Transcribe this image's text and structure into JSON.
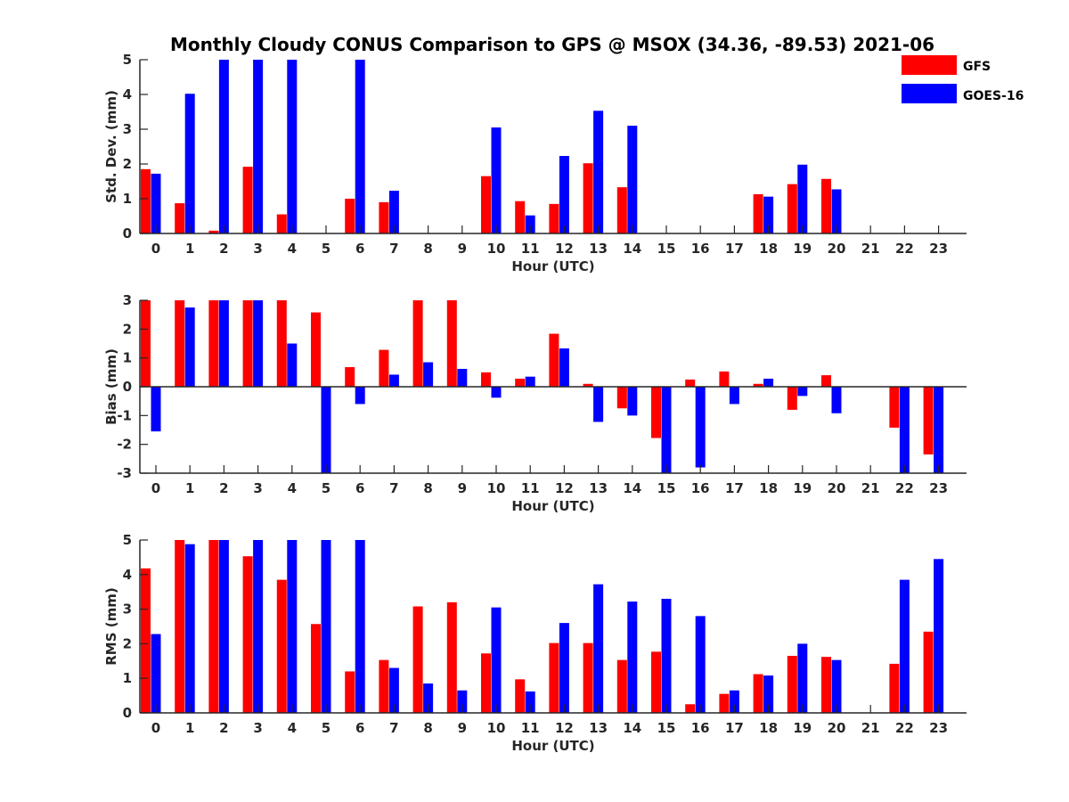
{
  "title": "Monthly Cloudy CONUS Comparison to GPS @ MSOX (34.36, -89.53) 2021-06",
  "legend": [
    {
      "name": "GFS",
      "color": "#ff0000"
    },
    {
      "name": "GOES-16",
      "color": "#0000ff"
    }
  ],
  "chart_data": [
    {
      "type": "bar",
      "xlabel": "Hour (UTC)",
      "ylabel": "Std. Dev. (mm)",
      "categories": [
        "0",
        "1",
        "2",
        "3",
        "4",
        "5",
        "6",
        "7",
        "8",
        "9",
        "10",
        "11",
        "12",
        "13",
        "14",
        "15",
        "16",
        "17",
        "18",
        "19",
        "20",
        "21",
        "22",
        "23"
      ],
      "ylim": [
        0,
        5
      ],
      "yticks": [
        0,
        1,
        2,
        3,
        4,
        5
      ],
      "series": [
        {
          "name": "GFS",
          "color": "#ff0000",
          "values": [
            1.85,
            0.87,
            0.08,
            1.92,
            0.55,
            0,
            1.0,
            0.9,
            0,
            0,
            1.65,
            0.93,
            0.85,
            2.02,
            1.33,
            0,
            0,
            0,
            1.13,
            1.42,
            1.57,
            0,
            0,
            0
          ]
        },
        {
          "name": "GOES-16",
          "color": "#0000ff",
          "values": [
            1.72,
            4.02,
            5.0,
            5.0,
            5.0,
            0,
            5.0,
            1.23,
            0,
            0,
            3.05,
            0.52,
            2.23,
            3.53,
            3.1,
            0,
            0,
            0,
            1.06,
            1.98,
            1.27,
            0,
            0,
            0
          ]
        }
      ]
    },
    {
      "type": "bar",
      "xlabel": "Hour (UTC)",
      "ylabel": "Bias (mm)",
      "categories": [
        "0",
        "1",
        "2",
        "3",
        "4",
        "5",
        "6",
        "7",
        "8",
        "9",
        "10",
        "11",
        "12",
        "13",
        "14",
        "15",
        "16",
        "17",
        "18",
        "19",
        "20",
        "21",
        "22",
        "23"
      ],
      "ylim": [
        -3,
        3
      ],
      "yticks": [
        -3,
        -2,
        -1,
        0,
        1,
        2,
        3
      ],
      "series": [
        {
          "name": "GFS",
          "color": "#ff0000",
          "values": [
            3.0,
            3.0,
            3.0,
            3.0,
            3.0,
            2.58,
            0.68,
            1.28,
            3.0,
            3.0,
            0.5,
            0.28,
            1.84,
            0.1,
            -0.75,
            -1.78,
            0.25,
            0.53,
            0.1,
            -0.8,
            0.4,
            0,
            -1.42,
            -2.35
          ]
        },
        {
          "name": "GOES-16",
          "color": "#0000ff",
          "values": [
            -1.55,
            2.75,
            3.0,
            3.0,
            1.5,
            -3.0,
            -0.6,
            0.42,
            0.85,
            0.62,
            -0.38,
            0.35,
            1.33,
            -1.22,
            -1.0,
            -3.0,
            -2.8,
            -0.6,
            0.28,
            -0.32,
            -0.92,
            0,
            -3.0,
            -3.0
          ]
        }
      ]
    },
    {
      "type": "bar",
      "xlabel": "Hour (UTC)",
      "ylabel": "RMS (mm)",
      "categories": [
        "0",
        "1",
        "2",
        "3",
        "4",
        "5",
        "6",
        "7",
        "8",
        "9",
        "10",
        "11",
        "12",
        "13",
        "14",
        "15",
        "16",
        "17",
        "18",
        "19",
        "20",
        "21",
        "22",
        "23"
      ],
      "ylim": [
        0,
        5
      ],
      "yticks": [
        0,
        1,
        2,
        3,
        4,
        5
      ],
      "series": [
        {
          "name": "GFS",
          "color": "#ff0000",
          "values": [
            4.18,
            5.0,
            5.0,
            4.53,
            3.85,
            2.57,
            1.2,
            1.53,
            3.08,
            3.2,
            1.72,
            0.97,
            2.02,
            2.02,
            1.53,
            1.77,
            0.25,
            0.55,
            1.12,
            1.65,
            1.62,
            0,
            1.42,
            2.35
          ]
        },
        {
          "name": "GOES-16",
          "color": "#0000ff",
          "values": [
            2.28,
            4.88,
            5.0,
            5.0,
            5.0,
            5.0,
            5.0,
            1.3,
            0.85,
            0.65,
            3.05,
            0.62,
            2.6,
            3.72,
            3.22,
            3.3,
            2.8,
            0.65,
            1.08,
            2.0,
            1.53,
            0,
            3.85,
            4.45
          ]
        }
      ]
    }
  ]
}
